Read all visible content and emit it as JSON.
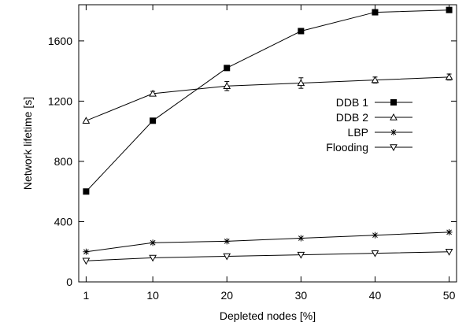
{
  "chart_data": {
    "type": "line",
    "title": "",
    "xlabel": "Depleted nodes [%]",
    "ylabel": "Network lifetime [s]",
    "x": [
      1,
      10,
      20,
      30,
      40,
      50
    ],
    "xticks": [
      1,
      10,
      20,
      30,
      40,
      50
    ],
    "xlim": [
      0,
      51
    ],
    "ylim": [
      0,
      1840
    ],
    "yticks": [
      0,
      400,
      800,
      1200,
      1600
    ],
    "grid": false,
    "legend_position": "center-right",
    "series": [
      {
        "name": "DDB 1",
        "marker": "filled-square",
        "values": [
          600,
          1070,
          1420,
          1665,
          1790,
          1805
        ],
        "errors": [
          0,
          0,
          0,
          0,
          0,
          0
        ]
      },
      {
        "name": "DDB 2",
        "marker": "triangle-up",
        "values": [
          1070,
          1250,
          1300,
          1320,
          1340,
          1360
        ],
        "errors": [
          0,
          15,
          30,
          35,
          20,
          20
        ]
      },
      {
        "name": "LBP",
        "marker": "asterisk",
        "values": [
          200,
          260,
          270,
          290,
          310,
          330
        ],
        "errors": [
          0,
          0,
          0,
          0,
          0,
          0
        ]
      },
      {
        "name": "Flooding",
        "marker": "triangle-down",
        "values": [
          140,
          160,
          170,
          180,
          190,
          200
        ],
        "errors": [
          0,
          0,
          0,
          0,
          0,
          0
        ]
      }
    ]
  }
}
